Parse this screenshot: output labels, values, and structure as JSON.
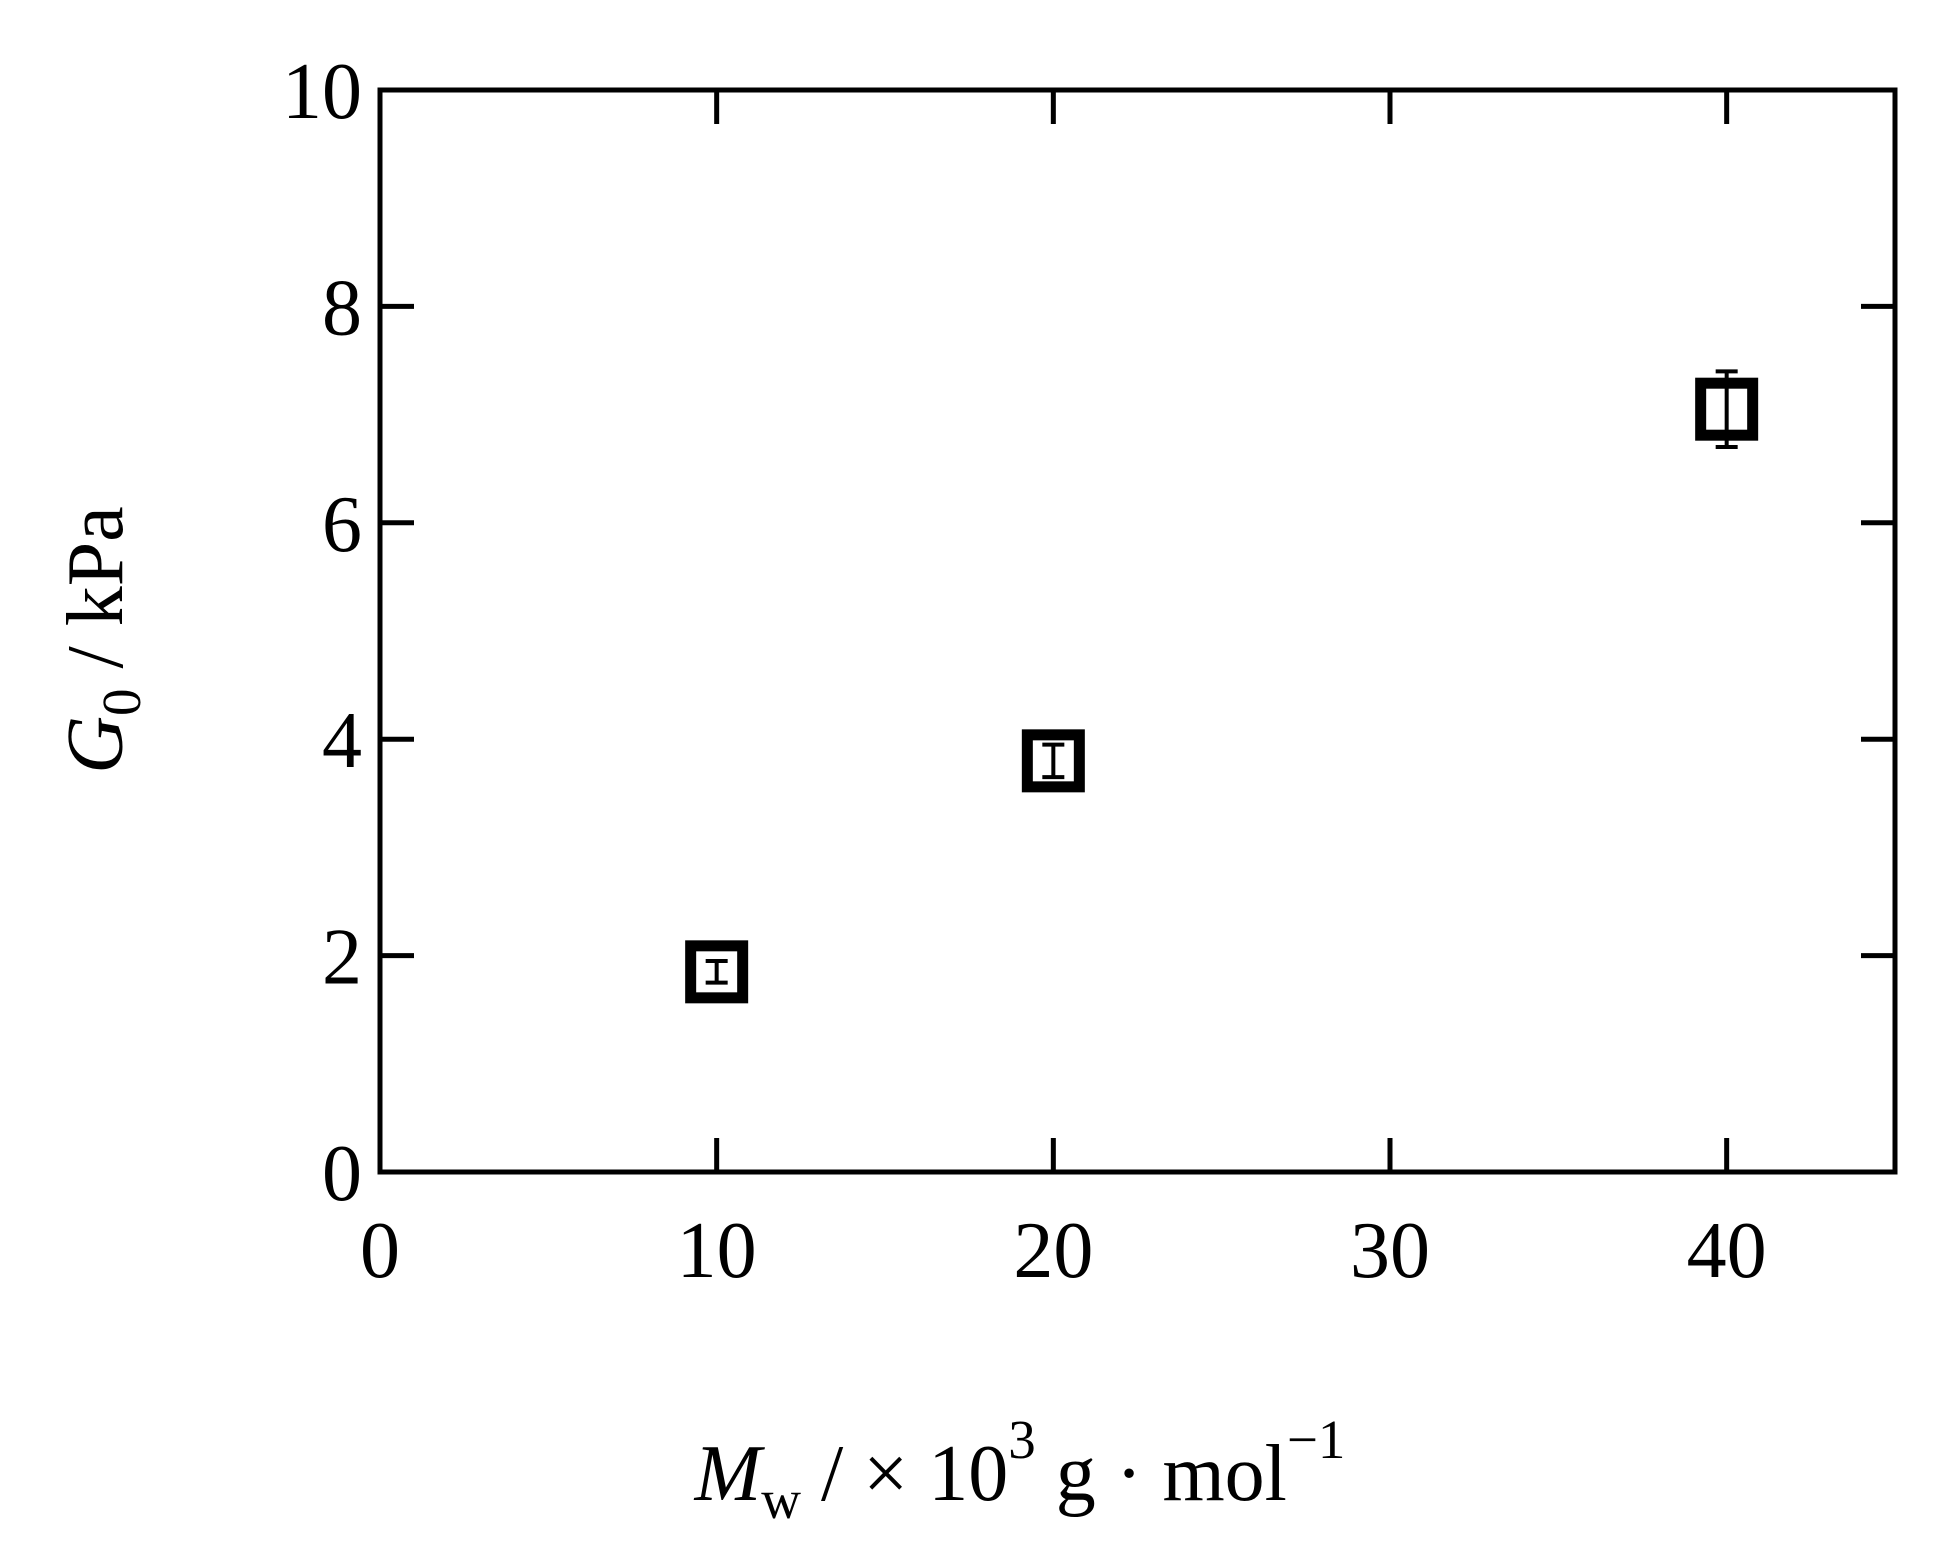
{
  "chart_data": {
    "type": "scatter",
    "xlim": [
      0,
      45
    ],
    "ylim": [
      0,
      10
    ],
    "xticks": [
      0,
      10,
      20,
      30,
      40
    ],
    "yticks": [
      0,
      2,
      4,
      6,
      8,
      10
    ],
    "xtick_labels": [
      "0",
      "10",
      "20",
      "30",
      "40"
    ],
    "ytick_labels": [
      "0",
      "2",
      "4",
      "6",
      "8",
      "10"
    ],
    "xlabel": {
      "symbol": "M",
      "subscript": "w",
      "text": " / × 10",
      "superscript": "3",
      "unit": " g · mol",
      "unit_superscript": "−1"
    },
    "ylabel": {
      "symbol": "G",
      "subscript": "0",
      "text": " / kPa"
    },
    "marker": "open-square",
    "color": "#000000",
    "grid": false,
    "legend": "none",
    "series": [
      {
        "points": [
          {
            "x": 10,
            "y": 1.85,
            "yerr": 0.1
          },
          {
            "x": 20,
            "y": 3.8,
            "yerr": 0.15
          },
          {
            "x": 40,
            "y": 7.05,
            "yerr": 0.35
          }
        ]
      }
    ]
  }
}
